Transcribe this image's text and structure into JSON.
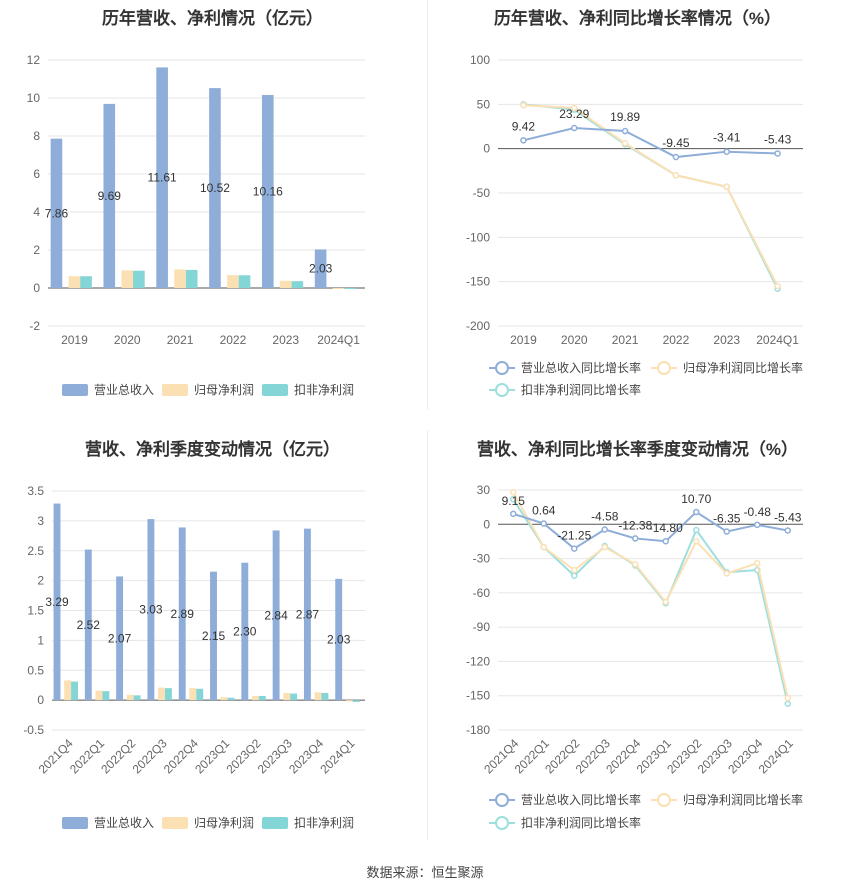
{
  "source_label": "数据来源：恒生聚源",
  "chart_data": [
    {
      "type": "bar",
      "title": "历年营收、净利情况（亿元）",
      "categories": [
        "2019",
        "2020",
        "2021",
        "2022",
        "2023",
        "2024Q1"
      ],
      "ylim": [
        -2,
        12
      ],
      "yticks": [
        -2,
        0,
        2,
        4,
        6,
        8,
        10,
        12
      ],
      "series": [
        {
          "name": "营业总收入",
          "color": "#8eadd9",
          "values": [
            7.86,
            9.69,
            11.61,
            10.52,
            10.16,
            2.03
          ],
          "labels": [
            "7.86",
            "9.69",
            "11.61",
            "10.52",
            "10.16",
            "2.03"
          ]
        },
        {
          "name": "归母净利润",
          "color": "#fbe0b3",
          "values": [
            0.62,
            0.93,
            0.98,
            0.68,
            0.38,
            -0.02
          ]
        },
        {
          "name": "扣非净利润",
          "color": "#84d5d5",
          "values": [
            0.62,
            0.91,
            0.95,
            0.67,
            0.36,
            -0.03
          ]
        }
      ],
      "legend": "bottom"
    },
    {
      "type": "line",
      "title": "历年营收、净利同比增长率情况（%）",
      "categories": [
        "2019",
        "2020",
        "2021",
        "2022",
        "2023",
        "2024Q1"
      ],
      "ylim": [
        -200,
        100
      ],
      "yticks": [
        -200,
        -150,
        -100,
        -50,
        0,
        50,
        100
      ],
      "series": [
        {
          "name": "营业总收入同比增长率",
          "color": "#8eadd9",
          "values": [
            9.42,
            23.29,
            19.89,
            -9.45,
            -3.41,
            -5.43
          ],
          "labels": [
            "9.42",
            "23.29",
            "19.89",
            "-9.45",
            "-3.41",
            "-5.43"
          ]
        },
        {
          "name": "归母净利润同比增长率",
          "color": "#fbe0b3",
          "values": [
            49,
            46,
            6,
            -30,
            -43,
            -155
          ]
        },
        {
          "name": "扣非净利润同比增长率",
          "color": "#9ddede",
          "values": [
            50,
            44,
            5,
            -30,
            -43,
            -158
          ]
        }
      ],
      "legend": "bottom"
    },
    {
      "type": "bar",
      "title": "营收、净利季度变动情况（亿元）",
      "categories": [
        "2021Q4",
        "2022Q1",
        "2022Q2",
        "2022Q3",
        "2022Q4",
        "2023Q1",
        "2023Q2",
        "2023Q3",
        "2023Q4",
        "2024Q1"
      ],
      "ylim": [
        -0.5,
        3.5
      ],
      "yticks": [
        -0.5,
        0,
        0.5,
        1,
        1.5,
        2,
        2.5,
        3,
        3.5
      ],
      "series": [
        {
          "name": "营业总收入",
          "color": "#8eadd9",
          "values": [
            3.29,
            2.52,
            2.07,
            3.03,
            2.89,
            2.15,
            2.3,
            2.84,
            2.87,
            2.03
          ],
          "labels": [
            "3.29",
            "2.52",
            "2.07",
            "3.03",
            "2.89",
            "2.15",
            "2.30",
            "2.84",
            "2.87",
            "2.03"
          ]
        },
        {
          "name": "归母净利润",
          "color": "#fbe0b3",
          "values": [
            0.33,
            0.16,
            0.09,
            0.21,
            0.2,
            0.05,
            0.07,
            0.12,
            0.13,
            -0.02
          ]
        },
        {
          "name": "扣非净利润",
          "color": "#84d5d5",
          "values": [
            0.31,
            0.15,
            0.08,
            0.2,
            0.19,
            0.04,
            0.07,
            0.11,
            0.12,
            -0.03
          ]
        }
      ],
      "legend": "bottom"
    },
    {
      "type": "line",
      "title": "营收、净利同比增长率季度变动情况（%）",
      "categories": [
        "2021Q4",
        "2022Q1",
        "2022Q2",
        "2022Q3",
        "2022Q4",
        "2023Q1",
        "2023Q2",
        "2023Q3",
        "2023Q4",
        "2024Q1"
      ],
      "ylim": [
        -180,
        30
      ],
      "yticks": [
        -180,
        -150,
        -120,
        -90,
        -60,
        -30,
        0,
        30
      ],
      "series": [
        {
          "name": "营业总收入同比增长率",
          "color": "#8eadd9",
          "values": [
            9.15,
            0.64,
            -21.25,
            -4.58,
            -12.38,
            -14.8,
            10.7,
            -6.35,
            -0.48,
            -5.43
          ],
          "labels": [
            "9.15",
            "0.64",
            "-21.25",
            "-4.58",
            "-12.38",
            "-14.80",
            "10.70",
            "-6.35",
            "-0.48",
            "-5.43"
          ]
        },
        {
          "name": "归母净利润同比增长率",
          "color": "#fbe0b3",
          "values": [
            28,
            -20,
            -40,
            -20,
            -35,
            -68,
            -15,
            -43,
            -34,
            -152
          ]
        },
        {
          "name": "扣非净利润同比增长率",
          "color": "#9ddede",
          "values": [
            22,
            -20,
            -45,
            -19,
            -36,
            -69,
            -5,
            -42,
            -40,
            -157
          ]
        }
      ],
      "legend": "bottom"
    }
  ]
}
